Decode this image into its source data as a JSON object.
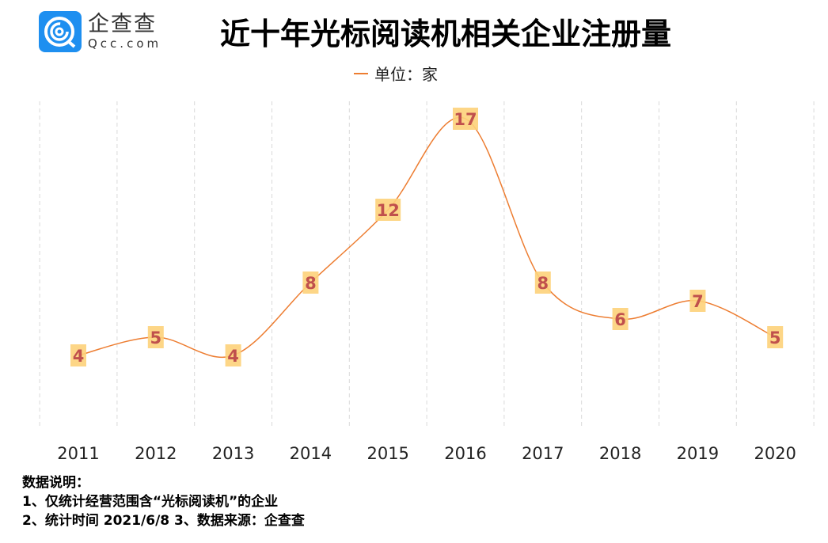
{
  "logo": {
    "cn": "企查查",
    "en": "Qcc.com"
  },
  "chart_data": {
    "type": "line",
    "title": "近十年光标阅读机相关企业注册量",
    "legend": "单位：家",
    "legend_placement": "top",
    "categories": [
      "2011",
      "2012",
      "2013",
      "2014",
      "2015",
      "2016",
      "2017",
      "2018",
      "2019",
      "2020"
    ],
    "series": [
      {
        "name": "单位：家",
        "values": [
          4,
          5,
          4,
          8,
          12,
          17,
          8,
          6,
          7,
          5
        ],
        "color": "#ed7d31"
      }
    ],
    "ylim": [
      0,
      17
    ],
    "smooth": true,
    "grid": "vertical dashed",
    "label_bg": "#fdd17a",
    "label_color": "#c0504d"
  },
  "notes": [
    "数据说明：",
    "1、仅统计经营范围含“光标阅读机”的企业",
    "2、统计时间 2021/6/8   3、数据来源：企查查"
  ]
}
